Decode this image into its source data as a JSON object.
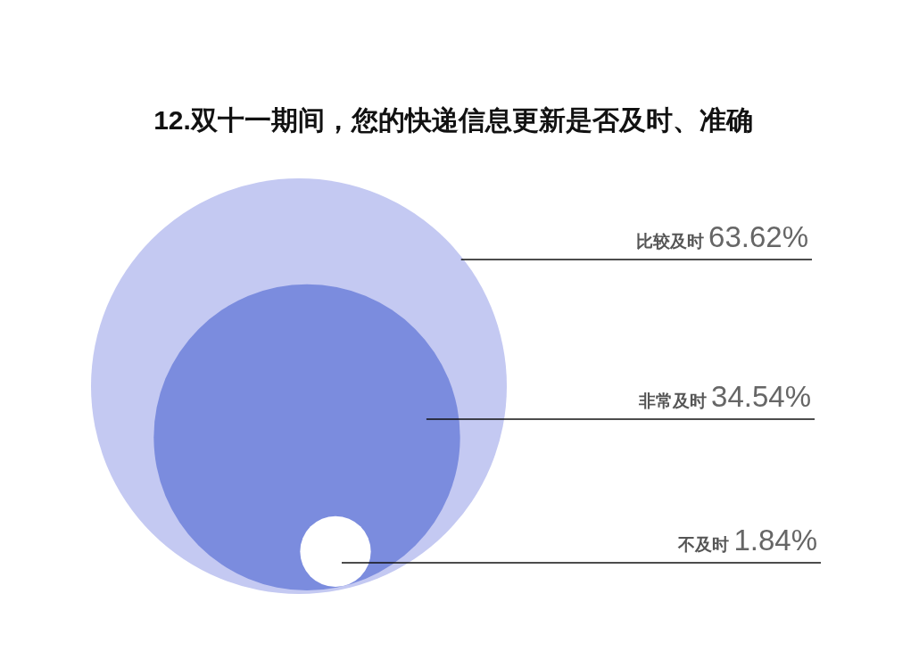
{
  "chart_data": {
    "type": "other",
    "title": "12.双十一期间，您的快递信息更新是否及时、准确",
    "categories": [
      "比较及时",
      "非常及时",
      "不及时"
    ],
    "values": [
      63.62,
      34.54,
      1.84
    ],
    "value_labels": [
      "63.62%",
      "34.54%",
      "1.84%"
    ],
    "colors": [
      "#c4c9f2",
      "#7b8cde",
      "#ffffff"
    ]
  }
}
